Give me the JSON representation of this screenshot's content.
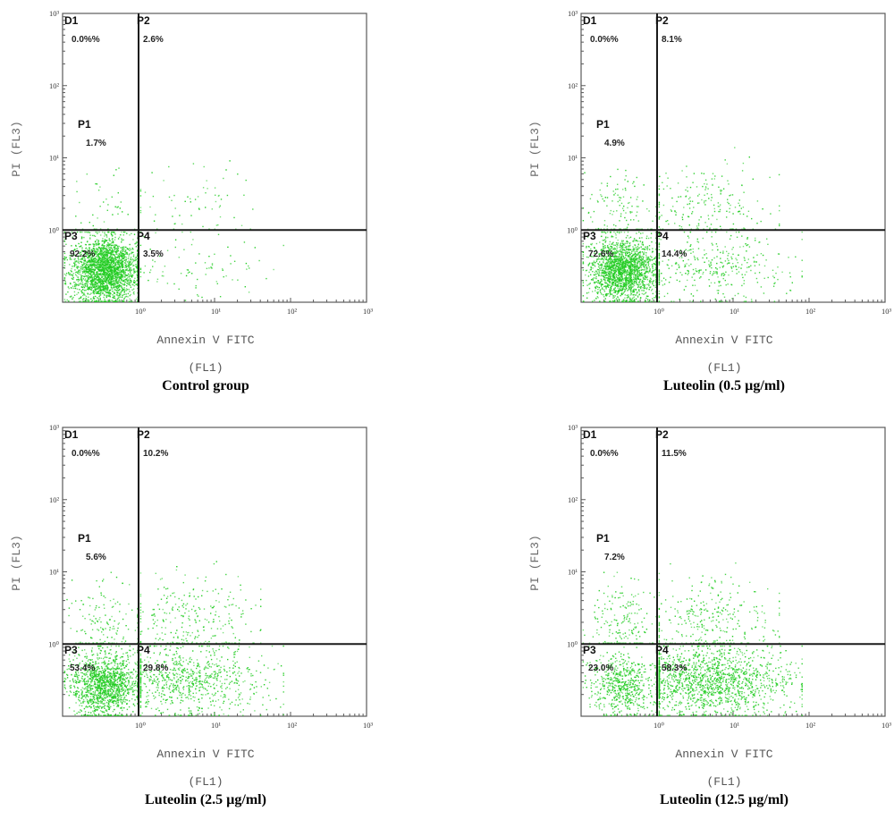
{
  "chart_data": [
    {
      "type": "scatter",
      "title": "Control group",
      "xlabel": "Annexin V FITC",
      "xlabel2": "(FL1)",
      "ylabel": "PI (FL3)",
      "x_scale": "log",
      "y_scale": "log",
      "xlim": [
        0.1,
        1000
      ],
      "ylim": [
        0.1,
        1000
      ],
      "x_ticks": [
        "10⁰",
        "10¹",
        "10²",
        "10³"
      ],
      "y_ticks": [
        "10⁰",
        "10¹",
        "10²",
        "10³"
      ],
      "gates": {
        "x": 1,
        "y": 1
      },
      "point_color": "#22cc22",
      "quadrants": [
        {
          "name": "D1",
          "percent": "0.0%%"
        },
        {
          "name": "P2",
          "percent": "2.6%"
        },
        {
          "name": "P1",
          "percent": "1.7%"
        },
        {
          "name": "P3",
          "percent": "92.2%"
        },
        {
          "name": "P4",
          "percent": "3.5%"
        }
      ]
    },
    {
      "type": "scatter",
      "title": "Luteolin (0.5 µg/ml)",
      "xlabel": "Annexin V FITC",
      "xlabel2": "(FL1)",
      "ylabel": "PI (FL3)",
      "x_scale": "log",
      "y_scale": "log",
      "xlim": [
        0.1,
        1000
      ],
      "ylim": [
        0.1,
        1000
      ],
      "x_ticks": [
        "10⁰",
        "10¹",
        "10²",
        "10³"
      ],
      "y_ticks": [
        "10⁰",
        "10¹",
        "10²",
        "10³"
      ],
      "gates": {
        "x": 1,
        "y": 1
      },
      "point_color": "#22cc22",
      "quadrants": [
        {
          "name": "D1",
          "percent": "0.0%%"
        },
        {
          "name": "P2",
          "percent": "8.1%"
        },
        {
          "name": "P1",
          "percent": "4.9%"
        },
        {
          "name": "P3",
          "percent": "72.6%"
        },
        {
          "name": "P4",
          "percent": "14.4%"
        }
      ]
    },
    {
      "type": "scatter",
      "title": "Luteolin (2.5 µg/ml)",
      "xlabel": "Annexin V FITC",
      "xlabel2": "(FL1)",
      "ylabel": "PI (FL3)",
      "x_scale": "log",
      "y_scale": "log",
      "xlim": [
        0.1,
        1000
      ],
      "ylim": [
        0.1,
        1000
      ],
      "x_ticks": [
        "10⁰",
        "10¹",
        "10²",
        "10³"
      ],
      "y_ticks": [
        "10⁰",
        "10¹",
        "10²",
        "10³"
      ],
      "gates": {
        "x": 1,
        "y": 1
      },
      "point_color": "#22cc22",
      "quadrants": [
        {
          "name": "D1",
          "percent": "0.0%%"
        },
        {
          "name": "P2",
          "percent": "10.2%"
        },
        {
          "name": "P1",
          "percent": "5.6%"
        },
        {
          "name": "P3",
          "percent": "53.4%"
        },
        {
          "name": "P4",
          "percent": "29.8%"
        }
      ]
    },
    {
      "type": "scatter",
      "title": "Luteolin (12.5 µg/ml)",
      "xlabel": "Annexin V FITC",
      "xlabel2": "(FL1)",
      "ylabel": "PI (FL3)",
      "x_scale": "log",
      "y_scale": "log",
      "xlim": [
        0.1,
        1000
      ],
      "ylim": [
        0.1,
        1000
      ],
      "x_ticks": [
        "10⁰",
        "10¹",
        "10²",
        "10³"
      ],
      "y_ticks": [
        "10⁰",
        "10¹",
        "10²",
        "10³"
      ],
      "gates": {
        "x": 1,
        "y": 1
      },
      "point_color": "#22cc22",
      "quadrants": [
        {
          "name": "D1",
          "percent": "0.0%%"
        },
        {
          "name": "P2",
          "percent": "11.5%"
        },
        {
          "name": "P1",
          "percent": "7.2%"
        },
        {
          "name": "P3",
          "percent": "23.0%"
        },
        {
          "name": "P4",
          "percent": "58.3%"
        }
      ]
    }
  ]
}
